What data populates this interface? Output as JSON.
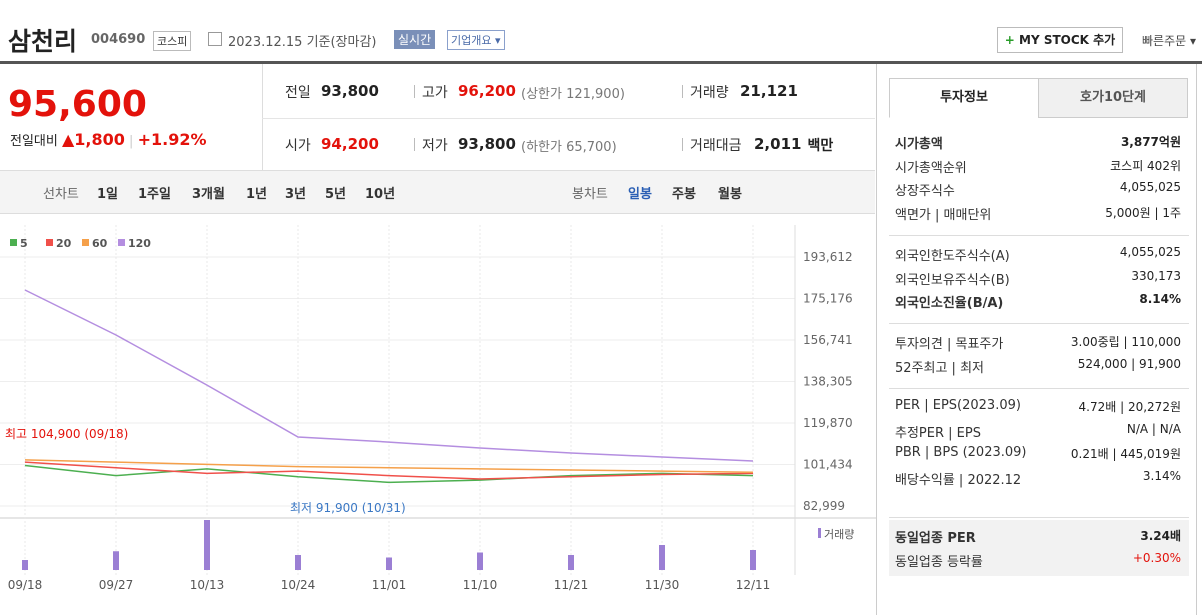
{
  "header": {
    "name": "삼천리",
    "code": "004690",
    "market": "코스피",
    "date": "2023.12.15 기준(장마감)",
    "realtime": "실시간",
    "overview": "기업개요",
    "mystock": "MY STOCK 추가",
    "quick_order": "빠른주문"
  },
  "price": {
    "current": "95,600",
    "change_label": "전일대비",
    "change": "1,800",
    "change_rate": "+1.92%"
  },
  "quote": [
    {
      "label": "전일",
      "value": "93,800"
    },
    {
      "label": "고가",
      "value": "96,200",
      "sub": "(상한가 121,900)"
    },
    {
      "label": "거래량",
      "value": "21,121"
    },
    {
      "label": "시가",
      "value": "94,200"
    },
    {
      "label": "저가",
      "value": "93,800",
      "sub": "(하한가 65,700)"
    },
    {
      "label": "거래대금",
      "value": "2,011",
      "unit": "백만"
    }
  ],
  "chart_tabs": {
    "line_label": "선차트",
    "line": [
      "1일",
      "1주일",
      "3개월",
      "1년",
      "3년",
      "5년",
      "10년"
    ],
    "candle_label": "봉차트",
    "candle": [
      "일봉",
      "주봉",
      "월봉"
    ]
  },
  "chart_data": {
    "type": "line",
    "x": [
      "09/18",
      "09/27",
      "10/13",
      "10/24",
      "11/01",
      "11/10",
      "11/21",
      "11/30",
      "12/11"
    ],
    "series": [
      {
        "name": "5",
        "color": "#4caf50",
        "values": [
          101000,
          96500,
          99500,
          96000,
          93500,
          94500,
          96500,
          97500,
          96500
        ]
      },
      {
        "name": "20",
        "color": "#f0504a",
        "values": [
          102500,
          100000,
          97500,
          98500,
          96500,
          95000,
          96000,
          97000,
          97500
        ]
      },
      {
        "name": "60",
        "color": "#f5a04a",
        "values": [
          103500,
          102500,
          101500,
          100500,
          100000,
          99500,
          99000,
          98500,
          98000
        ]
      },
      {
        "name": "120",
        "color": "#b48ee0",
        "values": [
          178950,
          158960,
          136700,
          113650,
          111400,
          108760,
          106540,
          104770,
          103000
        ]
      }
    ],
    "ylim": [
      82999,
      193612
    ],
    "yticks": [
      {
        "value": 193612,
        "label": "193,612"
      },
      {
        "value": 175176,
        "label": "175,176"
      },
      {
        "value": 156741,
        "label": "156,741"
      },
      {
        "value": 138305,
        "label": "138,305"
      },
      {
        "value": 119870,
        "label": "119,870"
      },
      {
        "value": 101434,
        "label": "101,434"
      },
      {
        "value": 82999,
        "label": "82,999"
      }
    ],
    "annotations": [
      "최고 104,900 (09/18)",
      "최저 91,900 (10/31)"
    ],
    "volume": {
      "name": "거래량",
      "color": "#9b7fd4",
      "values": [
        8000,
        15000,
        40000,
        12000,
        10000,
        14000,
        12000,
        20000,
        16000
      ]
    }
  },
  "side": {
    "tabs": [
      "투자정보",
      "호가10단계"
    ],
    "sections": [
      [
        {
          "label": "시가총액",
          "value": "3,877억원"
        },
        {
          "label": "시가총액순위",
          "value": "코스피 402위"
        },
        {
          "label": "상장주식수",
          "value": "4,055,025"
        },
        {
          "label": "액면가 | 매매단위",
          "value": "5,000원 | 1주"
        }
      ],
      [
        {
          "label": "외국인한도주식수(A)",
          "value": "4,055,025"
        },
        {
          "label": "외국인보유주식수(B)",
          "value": "330,173"
        },
        {
          "label": "외국인소진율(B/A)",
          "value": "8.14%"
        }
      ],
      [
        {
          "label": "투자의견 | 목표주가",
          "value": "3.00중립 | 110,000"
        },
        {
          "label": "52주최고 | 최저",
          "value": "524,000 | 91,900"
        }
      ],
      [
        {
          "label": "PER | EPS(2023.09)",
          "value": "4.72배 | 20,272원"
        },
        {
          "label": "추정PER | EPS",
          "value": "N/A | N/A"
        },
        {
          "label": "PBR | BPS (2023.09)",
          "value": "0.21배 | 445,019원"
        },
        {
          "label": "배당수익률 | 2022.12",
          "value": "3.14%"
        }
      ],
      [
        {
          "label": "동일업종 PER",
          "value": "3.24배"
        },
        {
          "label": "동일업종 등락률",
          "value": "+0.30%"
        }
      ]
    ]
  }
}
